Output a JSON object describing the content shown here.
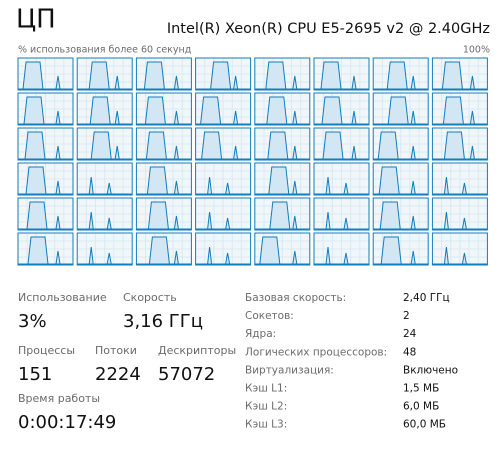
{
  "header": {
    "title": "ЦП",
    "cpu_name": "Intel(R) Xeon(R) CPU E5-2695 v2 @ 2.40GHz"
  },
  "graph": {
    "caption": "% использования более 60 секунд",
    "max_label": "100%"
  },
  "stats": [
    {
      "label": "Использование",
      "value": "3%"
    },
    {
      "label": "Скорость",
      "value": "3,16 ГГц"
    },
    {
      "label": "Процессы",
      "value": "151"
    },
    {
      "label": "Потоки",
      "value": "2224"
    },
    {
      "label": "Дескрипторы",
      "value": "57072"
    },
    {
      "label": "Время работы",
      "value": "0:00:17:49"
    }
  ],
  "details": [
    {
      "label": "Базовая скорость:",
      "value": "2,40 ГГц"
    },
    {
      "label": "Сокетов:",
      "value": "2"
    },
    {
      "label": "Ядра:",
      "value": "24"
    },
    {
      "label": "Логических процессоров:",
      "value": "48"
    },
    {
      "label": "Виртуализация:",
      "value": "Включено"
    },
    {
      "label": "Кэш L1:",
      "value": "1,5 МБ"
    },
    {
      "label": "Кэш L2:",
      "value": "6,0 МБ"
    },
    {
      "label": "Кэш L3:",
      "value": "60,0 МБ"
    }
  ]
}
